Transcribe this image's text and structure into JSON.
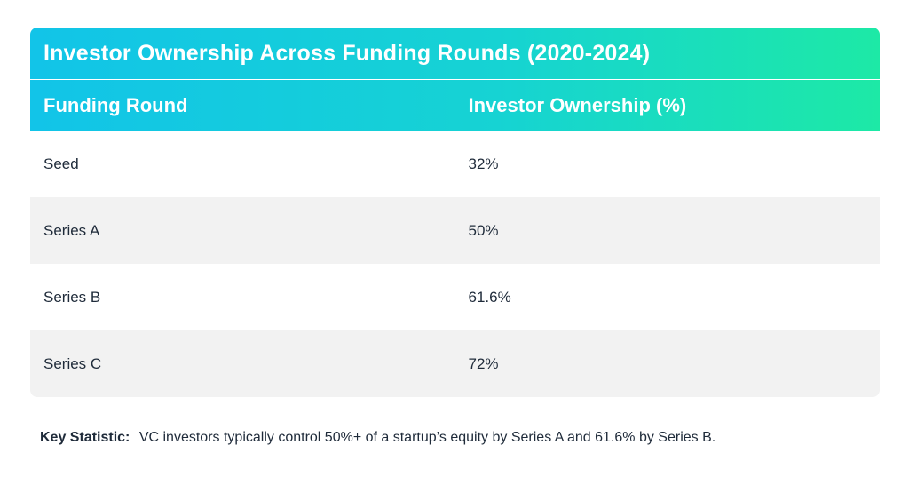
{
  "chart_data": {
    "type": "table",
    "title": "Investor Ownership Across Funding Rounds (2020-2024)",
    "columns": [
      "Funding Round",
      "Investor Ownership (%)"
    ],
    "rows": [
      [
        "Seed",
        "32%"
      ],
      [
        "Series A",
        "50%"
      ],
      [
        "Series B",
        "61.6%"
      ],
      [
        "Series C",
        "72%"
      ]
    ]
  },
  "note": {
    "label": "Key Statistic:",
    "text": "VC investors typically control 50%+ of a startup’s equity by Series A and 61.6% by Series B."
  },
  "colors": {
    "gradient_start": "#12c4e8",
    "gradient_end": "#1de9a6",
    "row_alt": "#f2f2f2"
  }
}
